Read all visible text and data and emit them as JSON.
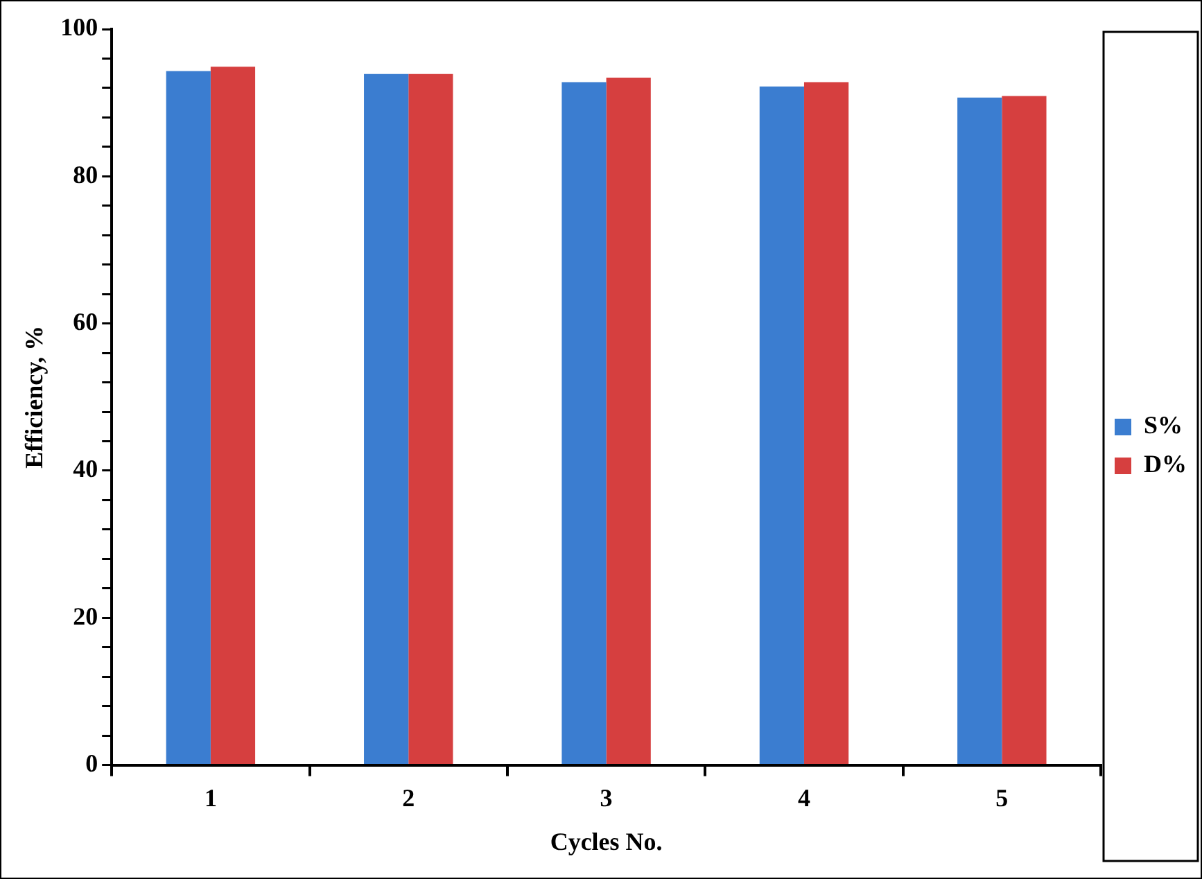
{
  "chart_data": {
    "type": "bar",
    "xlabel": "Cycles No.",
    "ylabel": "Efficiency, %",
    "categories": [
      "1",
      "2",
      "3",
      "4",
      "5"
    ],
    "series": [
      {
        "name": "S%",
        "color": "#3b7dd0",
        "values": [
          94.3,
          93.9,
          92.8,
          92.2,
          90.7
        ]
      },
      {
        "name": "D%",
        "color": "#d63f3f",
        "values": [
          94.9,
          93.9,
          93.4,
          92.8,
          90.9
        ]
      }
    ],
    "ylim": [
      0,
      100
    ],
    "yticks": [
      0,
      {
        "value": 4,
        "label": null
      },
      {
        "value": 8,
        "label": null
      },
      {
        "value": 12,
        "label": null
      },
      {
        "value": 16,
        "label": null
      },
      20,
      {
        "value": 24,
        "label": null
      },
      {
        "value": 28,
        "label": null
      },
      {
        "value": 32,
        "label": null
      },
      {
        "value": 36,
        "label": null
      },
      40,
      {
        "value": 44,
        "label": null
      },
      {
        "value": 48,
        "label": null
      },
      {
        "value": 52,
        "label": null
      },
      {
        "value": 56,
        "label": null
      },
      60,
      {
        "value": 64,
        "label": null
      },
      {
        "value": 68,
        "label": null
      },
      {
        "value": 72,
        "label": null
      },
      {
        "value": 76,
        "label": null
      },
      80,
      {
        "value": 84,
        "label": null
      },
      {
        "value": 88,
        "label": null
      },
      {
        "value": 92,
        "label": null
      },
      {
        "value": 96,
        "label": null
      },
      100
    ],
    "grid": false,
    "legend": "right"
  }
}
